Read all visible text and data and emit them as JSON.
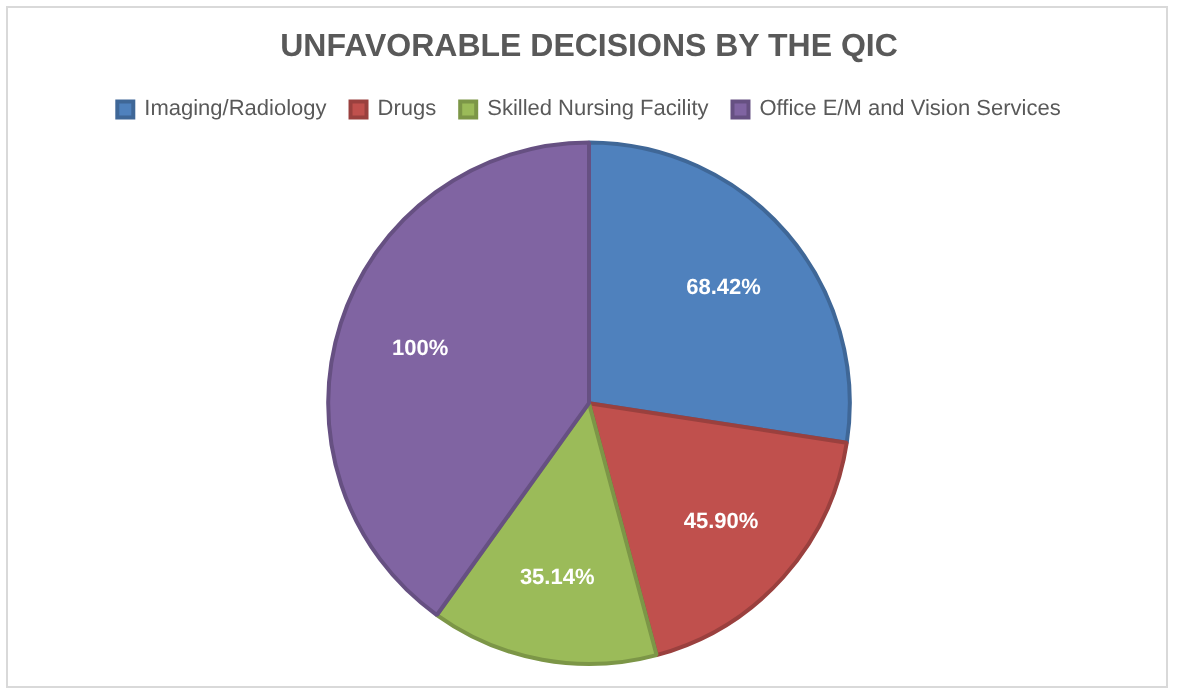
{
  "chart_data": {
    "type": "pie",
    "title": "UNFAVORABLE DECISIONS BY THE QIC",
    "categories": [
      "Imaging/Radiology",
      "Drugs",
      "Skilled Nursing Facility",
      "Office E/M and Vision Services"
    ],
    "values": [
      68.42,
      45.9,
      35.14,
      100
    ],
    "value_labels": [
      "68.42%",
      "45.90%",
      "35.14%",
      "100%"
    ],
    "colors": [
      "#4f81bd",
      "#c0504d",
      "#9bbb59",
      "#8064a2"
    ],
    "legend": "top"
  }
}
